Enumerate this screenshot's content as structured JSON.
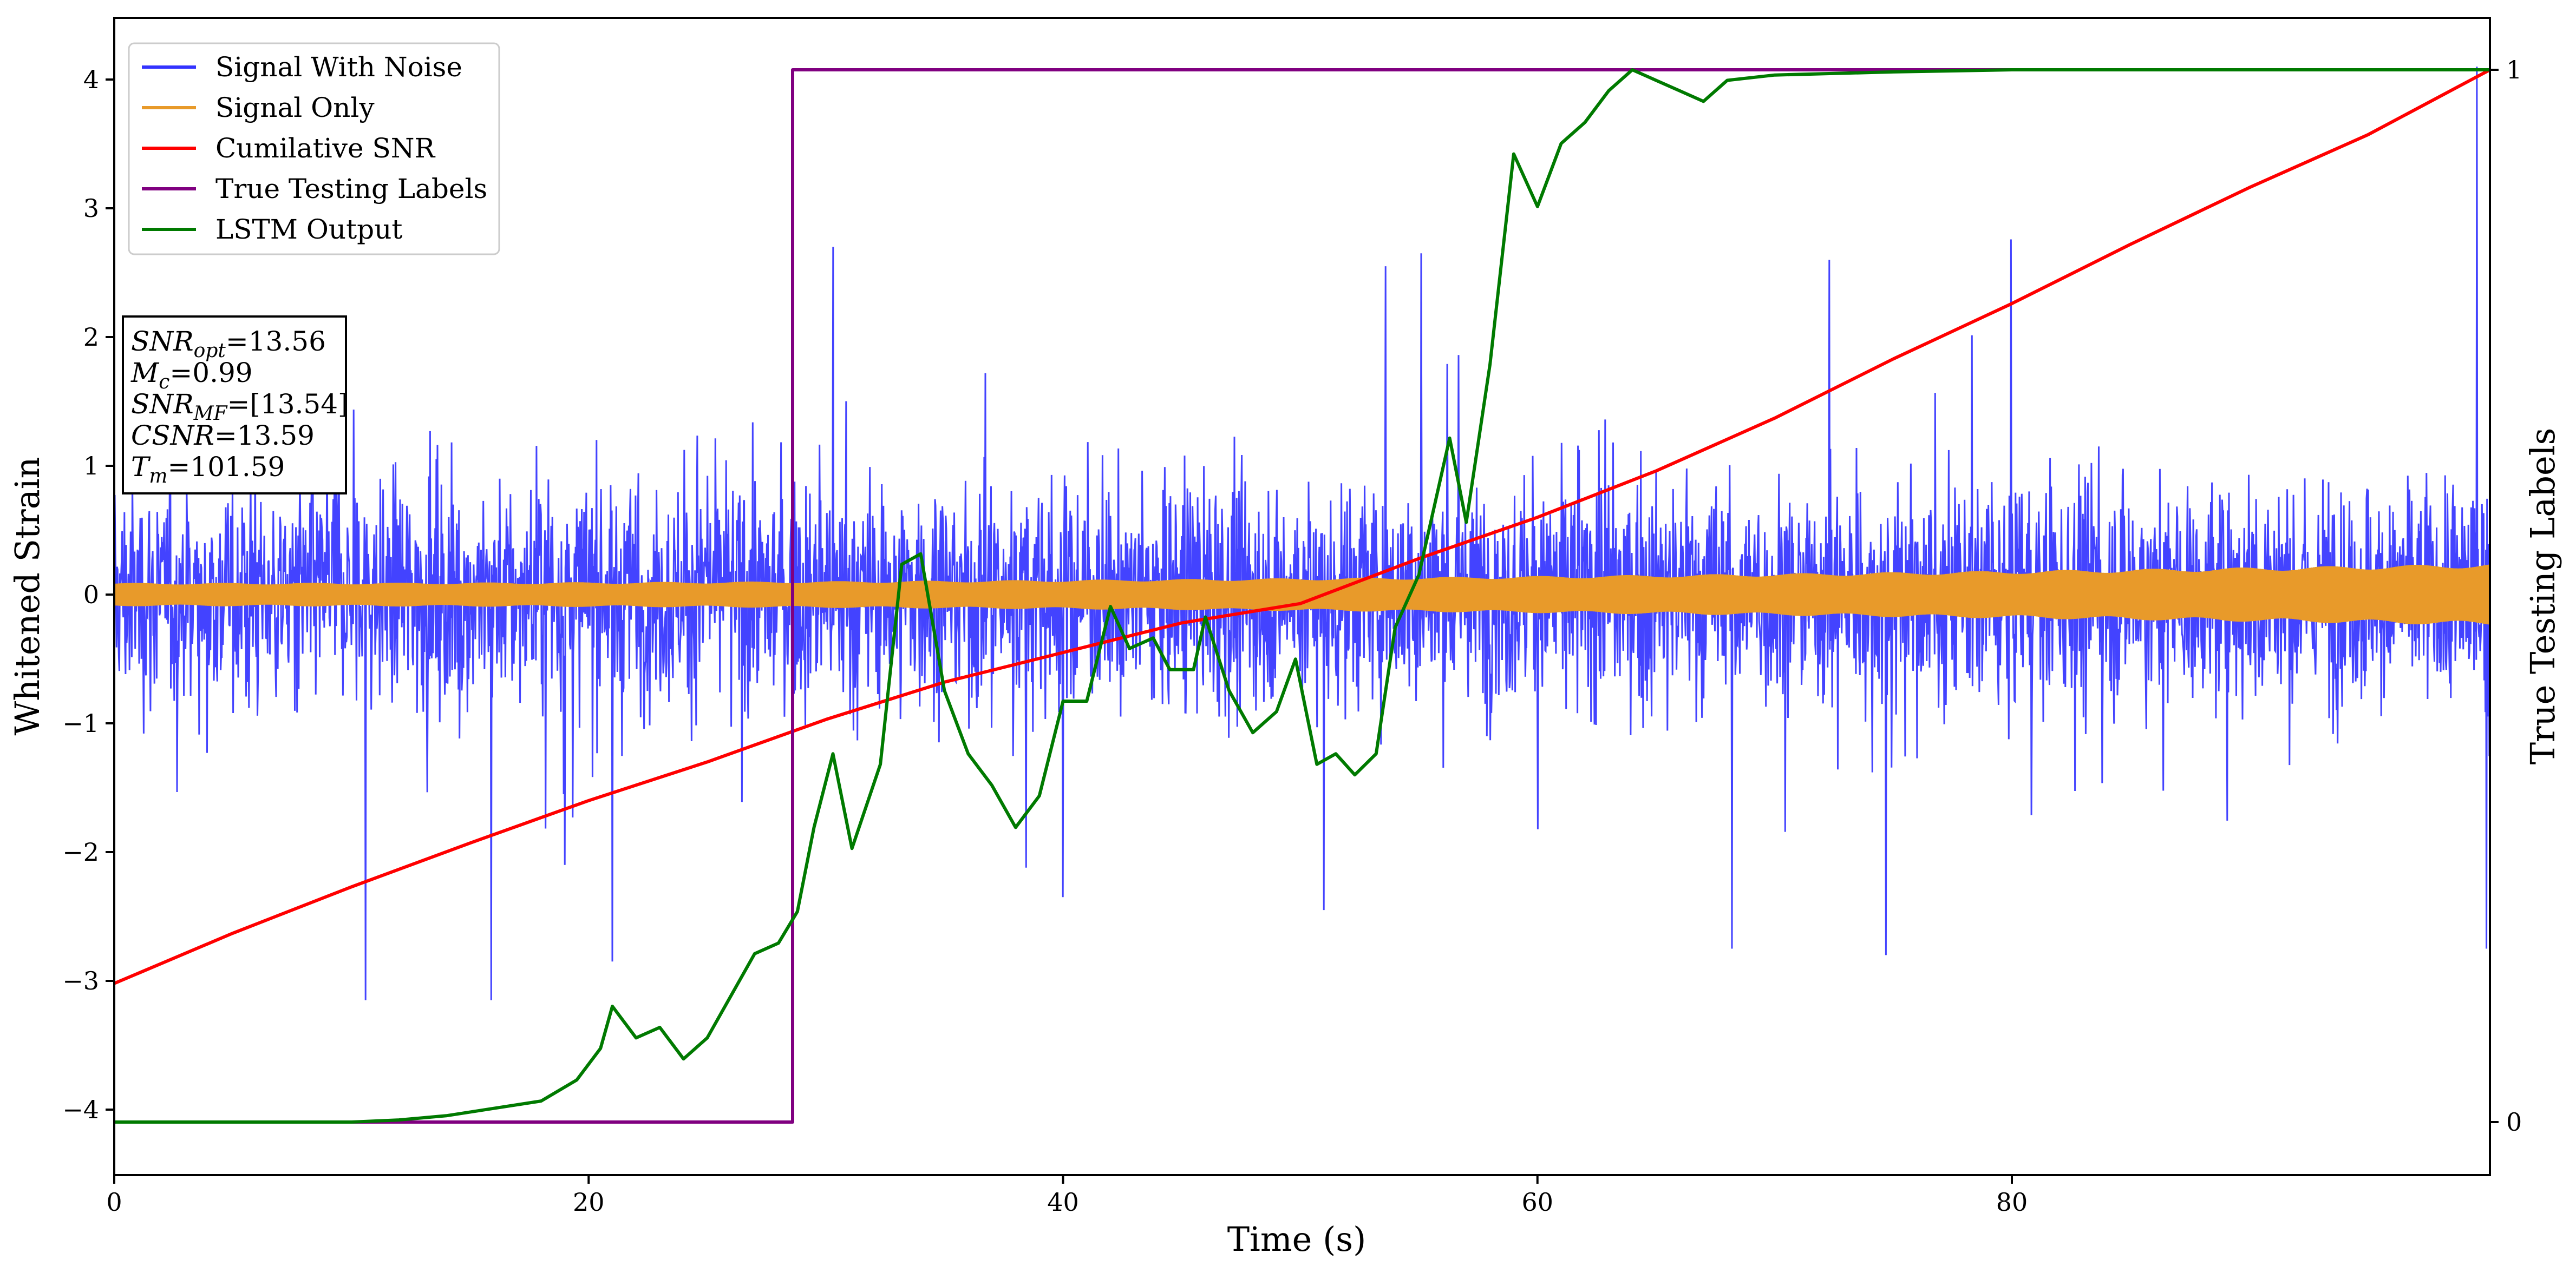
{
  "chart_data": {
    "type": "line",
    "title": "",
    "xlabel": "Time (s)",
    "ylabel": "Whitened Strain",
    "y2label": "True Testing Labels",
    "xlim": [
      0,
      100.2
    ],
    "ylim": [
      -4.5,
      4.5
    ],
    "y2lim": [
      -0.05,
      1.05
    ],
    "x_ticks": [
      0,
      20,
      40,
      60,
      80
    ],
    "x_tick_labels": [
      "0",
      "20",
      "40",
      "60",
      "80"
    ],
    "y_ticks": [
      -4,
      -3,
      -2,
      -1,
      0,
      1,
      2,
      3,
      4
    ],
    "y_tick_labels": [
      "−4",
      "−3",
      "−2",
      "−1",
      "0",
      "1",
      "2",
      "3",
      "4"
    ],
    "y2_ticks": [
      0,
      1
    ],
    "y2_tick_labels": [
      "0",
      "1"
    ],
    "grid": false,
    "legend_position": "top-left",
    "series": [
      {
        "name": "Signal With Noise",
        "color": "#3333ff",
        "axis": "left",
        "description_values": {
          "envelope_typical": 1.3,
          "peak_max": 4.1,
          "peak_min": -3.2,
          "x_range": [
            0,
            100.2
          ]
        },
        "spikes": [
          {
            "x": 10.6,
            "y": -3.15
          },
          {
            "x": 15.9,
            "y": -3.15
          },
          {
            "x": 19.0,
            "y": -2.1
          },
          {
            "x": 21.0,
            "y": -2.85
          },
          {
            "x": 30.3,
            "y": 2.7
          },
          {
            "x": 40.0,
            "y": -2.35
          },
          {
            "x": 53.6,
            "y": 2.55
          },
          {
            "x": 55.1,
            "y": 2.65
          },
          {
            "x": 51.0,
            "y": -2.45
          },
          {
            "x": 68.2,
            "y": -2.75
          },
          {
            "x": 74.7,
            "y": -2.8
          },
          {
            "x": 72.3,
            "y": 2.6
          },
          {
            "x": 100.0,
            "y": -2.75
          },
          {
            "x": 99.6,
            "y": 4.1
          }
        ]
      },
      {
        "name": "Signal Only",
        "color": "#e89a2a",
        "axis": "left",
        "description_values": {
          "amplitude_start": 0.09,
          "amplitude_end": 0.24
        }
      },
      {
        "name": "Cumilative SNR",
        "color": "#ff0000",
        "axis": "left",
        "points": [
          [
            0,
            -3.02
          ],
          [
            5,
            -2.63
          ],
          [
            10,
            -2.27
          ],
          [
            15,
            -1.93
          ],
          [
            20,
            -1.6
          ],
          [
            25,
            -1.3
          ],
          [
            30,
            -0.97
          ],
          [
            35,
            -0.68
          ],
          [
            40,
            -0.45
          ],
          [
            45,
            -0.22
          ],
          [
            50,
            -0.07
          ],
          [
            55,
            0.28
          ],
          [
            60,
            0.6
          ],
          [
            65,
            0.96
          ],
          [
            70,
            1.37
          ],
          [
            75,
            1.83
          ],
          [
            80,
            2.26
          ],
          [
            85,
            2.72
          ],
          [
            90,
            3.16
          ],
          [
            95,
            3.57
          ],
          [
            100.2,
            4.08
          ]
        ]
      },
      {
        "name": "True Testing Labels",
        "color": "#800080",
        "axis": "right",
        "points": [
          [
            0,
            0
          ],
          [
            28.6,
            0
          ],
          [
            28.6,
            1
          ],
          [
            100.2,
            1
          ]
        ]
      },
      {
        "name": "LSTM Output",
        "color": "#007a00",
        "axis": "right",
        "points": [
          [
            0,
            0
          ],
          [
            10,
            0
          ],
          [
            12,
            0.002
          ],
          [
            14,
            0.006
          ],
          [
            16,
            0.013
          ],
          [
            18,
            0.02
          ],
          [
            19.5,
            0.04
          ],
          [
            20.5,
            0.07
          ],
          [
            21,
            0.11
          ],
          [
            22,
            0.08
          ],
          [
            23,
            0.09
          ],
          [
            24,
            0.06
          ],
          [
            25,
            0.08
          ],
          [
            26,
            0.12
          ],
          [
            27,
            0.16
          ],
          [
            28,
            0.17
          ],
          [
            28.8,
            0.2
          ],
          [
            29.5,
            0.28
          ],
          [
            30.3,
            0.35
          ],
          [
            31.1,
            0.26
          ],
          [
            32.3,
            0.34
          ],
          [
            33.2,
            0.53
          ],
          [
            34.0,
            0.54
          ],
          [
            35.0,
            0.41
          ],
          [
            36.0,
            0.35
          ],
          [
            37.0,
            0.32
          ],
          [
            38.0,
            0.28
          ],
          [
            39.0,
            0.31
          ],
          [
            40.0,
            0.4
          ],
          [
            41.0,
            0.4
          ],
          [
            42.0,
            0.49
          ],
          [
            42.8,
            0.45
          ],
          [
            43.8,
            0.46
          ],
          [
            44.5,
            0.43
          ],
          [
            45.5,
            0.43
          ],
          [
            46.0,
            0.48
          ],
          [
            47.0,
            0.41
          ],
          [
            48.0,
            0.37
          ],
          [
            49.0,
            0.39
          ],
          [
            49.8,
            0.44
          ],
          [
            50.7,
            0.34
          ],
          [
            51.5,
            0.35
          ],
          [
            52.3,
            0.33
          ],
          [
            53.2,
            0.35
          ],
          [
            54.0,
            0.47
          ],
          [
            55.0,
            0.52
          ],
          [
            56.3,
            0.65
          ],
          [
            57.0,
            0.57
          ],
          [
            58.0,
            0.72
          ],
          [
            59.0,
            0.92
          ],
          [
            60.0,
            0.87
          ],
          [
            61.0,
            0.93
          ],
          [
            62.0,
            0.95
          ],
          [
            63.0,
            0.98
          ],
          [
            64.0,
            1.0
          ],
          [
            65.0,
            0.99
          ],
          [
            66.0,
            0.98
          ],
          [
            67.0,
            0.97
          ],
          [
            68.0,
            0.99
          ],
          [
            70.0,
            0.995
          ],
          [
            75.0,
            0.998
          ],
          [
            80.0,
            1.0
          ],
          [
            100.2,
            1.0
          ]
        ]
      }
    ],
    "info_box": [
      {
        "label": "SNR",
        "sub": "opt",
        "value": "=13.56"
      },
      {
        "label": "M",
        "sub": "c",
        "value": "=0.99"
      },
      {
        "label": "SNR",
        "sub": "MF",
        "value": "=[13.54]"
      },
      {
        "label": "CSNR",
        "sub": "",
        "value": "=13.59"
      },
      {
        "label": "T",
        "sub": "m",
        "value": "=101.59"
      }
    ]
  }
}
